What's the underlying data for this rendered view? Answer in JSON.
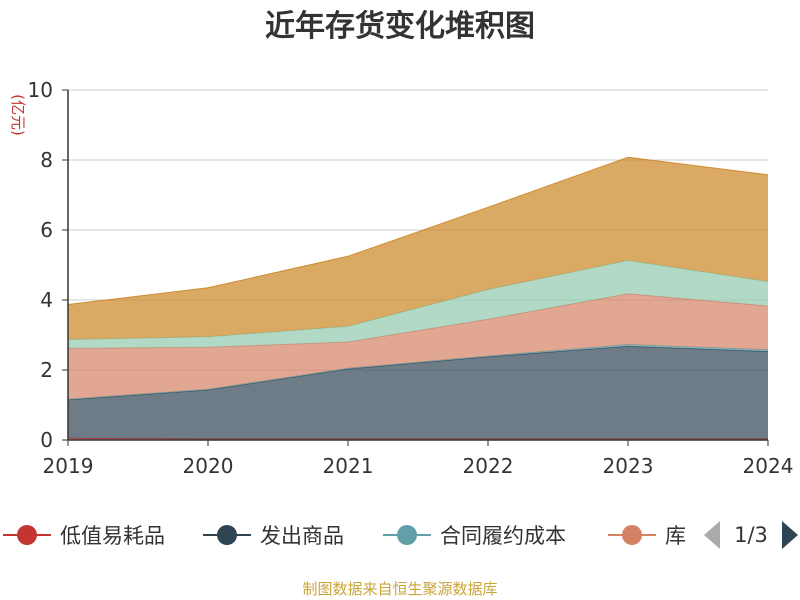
{
  "chart_data": {
    "type": "area",
    "stacked": true,
    "title": "近年存货变化堆积图",
    "ylabel": "(亿元)",
    "x": [
      "2019",
      "2020",
      "2021",
      "2022",
      "2023",
      "2024"
    ],
    "ylim": [
      0,
      10
    ],
    "yticks": [
      "0",
      "2",
      "4",
      "6",
      "8",
      "10"
    ],
    "grid": true,
    "series": [
      {
        "name": "低值易耗品",
        "color": "#c23531",
        "values": [
          0.05,
          0.03,
          0.03,
          0.03,
          0.03,
          0.03
        ]
      },
      {
        "name": "发出商品",
        "color": "#2f4554",
        "values": [
          1.1,
          1.4,
          2.0,
          2.35,
          2.65,
          2.5
        ]
      },
      {
        "name": "合同履约成本",
        "color": "#61a0a8",
        "values": [
          0.02,
          0.02,
          0.02,
          0.02,
          0.05,
          0.05
        ]
      },
      {
        "name": "库存商品",
        "color": "#d48265",
        "values": [
          1.45,
          1.2,
          0.75,
          1.05,
          1.45,
          1.25
        ]
      },
      {
        "name": "",
        "color": "#91c7ae",
        "values": [
          0.25,
          0.3,
          0.45,
          0.85,
          0.95,
          0.7
        ]
      },
      {
        "name": "",
        "color": "#ca8622",
        "values": [
          1.0,
          1.4,
          2.0,
          2.35,
          2.95,
          3.05
        ]
      }
    ]
  },
  "legend": {
    "items": [
      "低值易耗品",
      "发出商品",
      "合同履约成本",
      "库"
    ],
    "page": "1/3"
  },
  "source": "制图数据来自恒生聚源数据库"
}
